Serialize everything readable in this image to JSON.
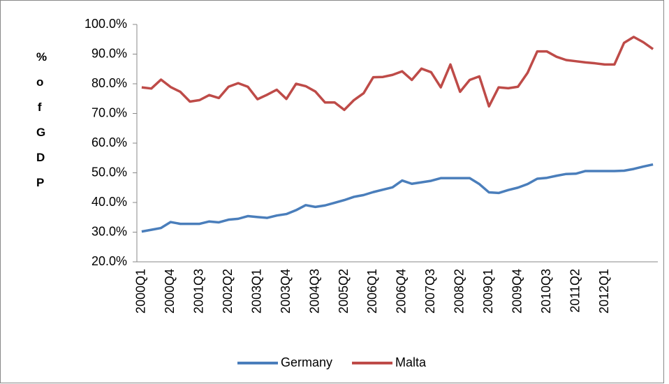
{
  "chart_data": {
    "type": "line",
    "y_label": "% of GDP",
    "categories": [
      "2000Q1",
      null,
      null,
      "2000Q4",
      null,
      null,
      "2001Q3",
      null,
      null,
      "2002Q2",
      null,
      null,
      "2003Q1",
      null,
      null,
      "2003Q4",
      null,
      null,
      "2004Q3",
      null,
      null,
      "2005Q2",
      null,
      null,
      "2006Q1",
      null,
      null,
      "2006Q4",
      null,
      null,
      "2007Q3",
      null,
      null,
      "2008Q2",
      null,
      null,
      "2009Q1",
      null,
      null,
      "2009Q4",
      null,
      null,
      "2010Q3",
      null,
      null,
      "2011Q2",
      null,
      null,
      "2012Q1",
      null,
      null,
      null,
      null,
      null
    ],
    "series": [
      {
        "name": "Germany",
        "color": "#4a7ebb",
        "values": [
          30.2,
          30.8,
          31.4,
          33.4,
          32.8,
          32.8,
          32.8,
          33.6,
          33.3,
          34.2,
          34.5,
          35.4,
          35.1,
          34.8,
          35.6,
          36.1,
          37.4,
          39.1,
          38.5,
          39.0,
          39.9,
          40.8,
          41.9,
          42.5,
          43.5,
          44.3,
          45.1,
          47.4,
          46.3,
          46.8,
          47.3,
          48.2,
          48.2,
          48.2,
          48.2,
          46.2,
          43.4,
          43.2,
          44.2,
          45.0,
          46.2,
          48.0,
          48.3,
          49.0,
          49.6,
          49.7,
          50.6,
          50.6,
          50.6,
          50.6,
          50.7,
          51.3,
          52.1,
          52.8
        ]
      },
      {
        "name": "Malta",
        "color": "#be4b48",
        "values": [
          78.8,
          78.4,
          81.4,
          78.9,
          77.3,
          74.0,
          74.5,
          76.2,
          75.2,
          79.0,
          80.2,
          79.0,
          74.8,
          76.3,
          78.0,
          74.9,
          80.0,
          79.2,
          77.4,
          73.7,
          73.7,
          71.2,
          74.5,
          76.8,
          82.2,
          82.3,
          83.0,
          84.2,
          81.3,
          85.1,
          83.9,
          78.8,
          86.5,
          77.3,
          81.3,
          82.5,
          72.4,
          78.8,
          78.5,
          79.0,
          83.7,
          90.9,
          90.9,
          89.1,
          88.0,
          87.6,
          87.2,
          86.9,
          86.5,
          86.5,
          93.8,
          95.8,
          94.0,
          91.7
        ]
      }
    ],
    "ylim": [
      20,
      100
    ],
    "yticks": [
      {
        "value": 20,
        "label": "20.0%"
      },
      {
        "value": 30,
        "label": "30.0%"
      },
      {
        "value": 40,
        "label": "40.0%"
      },
      {
        "value": 50,
        "label": "50.0%"
      },
      {
        "value": 60,
        "label": "60.0%"
      },
      {
        "value": 70,
        "label": "70.0%"
      },
      {
        "value": 80,
        "label": "80.0%"
      },
      {
        "value": 90,
        "label": "90.0%"
      },
      {
        "value": 100,
        "label": "100.0%"
      }
    ],
    "legend": "bottom"
  }
}
